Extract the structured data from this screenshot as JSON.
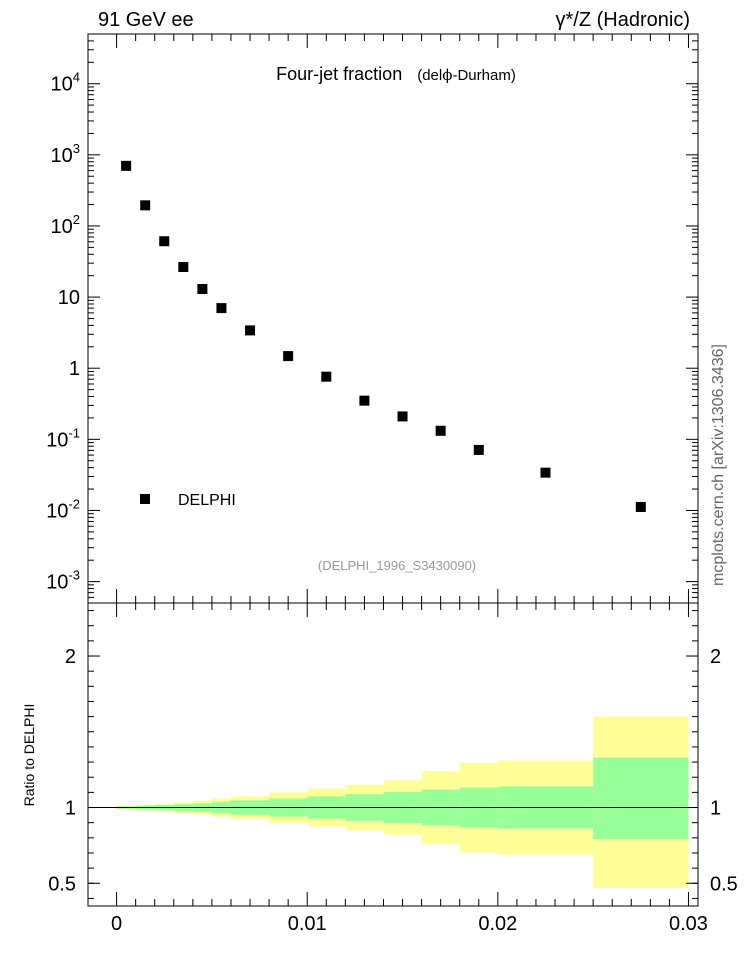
{
  "header": {
    "left": "91 GeV ee",
    "right": "γ*/Z (Hadronic)"
  },
  "side_label": "mcplots.cern.ch [arXiv:1306.3436]",
  "chart_data": [
    {
      "type": "scatter",
      "title": "Four-jet fraction",
      "subtitle_prefix": "del",
      "subtitle_symbol": "ϕ",
      "subtitle_suffix": "-Durham)",
      "subtitle_open": "(",
      "y_scale": "log",
      "xlim": [
        -0.0015,
        0.0305
      ],
      "ylim": [
        0.0005,
        50000
      ],
      "y_ticks": [
        {
          "value": 0.001,
          "label": "10",
          "exp": "-3"
        },
        {
          "value": 0.01,
          "label": "10",
          "exp": "-2"
        },
        {
          "value": 0.1,
          "label": "10",
          "exp": "-1"
        },
        {
          "value": 1,
          "label": "1",
          "exp": ""
        },
        {
          "value": 10,
          "label": "10",
          "exp": ""
        },
        {
          "value": 100,
          "label": "10",
          "exp": "2"
        },
        {
          "value": 1000,
          "label": "10",
          "exp": "3"
        },
        {
          "value": 10000,
          "label": "10",
          "exp": "4"
        }
      ],
      "legend": {
        "label": "DELPHI",
        "position": "bottom-left"
      },
      "watermark": "(DELPHI_1996_S3430090)",
      "series": [
        {
          "name": "DELPHI",
          "color": "#000000",
          "x": [
            0.0005,
            0.0015,
            0.0025,
            0.0035,
            0.0045,
            0.0055,
            0.007,
            0.009,
            0.011,
            0.013,
            0.015,
            0.017,
            0.019,
            0.0225,
            0.0275
          ],
          "y": [
            700,
            195,
            61,
            26.5,
            13,
            7,
            3.4,
            1.48,
            0.76,
            0.35,
            0.21,
            0.132,
            0.071,
            0.034,
            0.0112
          ]
        }
      ]
    },
    {
      "type": "area",
      "ylabel": "Ratio to DELPHI",
      "xlim": [
        -0.0015,
        0.0305
      ],
      "ylim": [
        0.35,
        2.35
      ],
      "x_ticks": [
        {
          "value": 0,
          "label": "0"
        },
        {
          "value": 0.01,
          "label": "0.01"
        },
        {
          "value": 0.02,
          "label": "0.02"
        },
        {
          "value": 0.03,
          "label": "0.03"
        }
      ],
      "y_ticks": [
        {
          "value": 0.5,
          "label": "0.5"
        },
        {
          "value": 1,
          "label": "1"
        },
        {
          "value": 2,
          "label": "2"
        }
      ],
      "reference_line": 1,
      "colors": {
        "inner_band": "#99ff99",
        "outer_band": "#ffff99"
      },
      "bins": [
        {
          "lo": 0.0,
          "hi": 0.001,
          "in_lo": 0.992,
          "in_hi": 1.008,
          "out_lo": 0.988,
          "out_hi": 1.012
        },
        {
          "lo": 0.001,
          "hi": 0.002,
          "in_lo": 0.988,
          "in_hi": 1.012,
          "out_lo": 0.982,
          "out_hi": 1.018
        },
        {
          "lo": 0.002,
          "hi": 0.003,
          "in_lo": 0.984,
          "in_hi": 1.016,
          "out_lo": 0.975,
          "out_hi": 1.025
        },
        {
          "lo": 0.003,
          "hi": 0.004,
          "in_lo": 0.978,
          "in_hi": 1.022,
          "out_lo": 0.965,
          "out_hi": 1.035
        },
        {
          "lo": 0.004,
          "hi": 0.005,
          "in_lo": 0.972,
          "in_hi": 1.028,
          "out_lo": 0.955,
          "out_hi": 1.045
        },
        {
          "lo": 0.005,
          "hi": 0.006,
          "in_lo": 0.962,
          "in_hi": 1.038,
          "out_lo": 0.94,
          "out_hi": 1.06
        },
        {
          "lo": 0.006,
          "hi": 0.008,
          "in_lo": 0.952,
          "in_hi": 1.048,
          "out_lo": 0.925,
          "out_hi": 1.075
        },
        {
          "lo": 0.008,
          "hi": 0.01,
          "in_lo": 0.94,
          "in_hi": 1.06,
          "out_lo": 0.9,
          "out_hi": 1.1
        },
        {
          "lo": 0.01,
          "hi": 0.012,
          "in_lo": 0.926,
          "in_hi": 1.074,
          "out_lo": 0.875,
          "out_hi": 1.125
        },
        {
          "lo": 0.012,
          "hi": 0.014,
          "in_lo": 0.912,
          "in_hi": 1.088,
          "out_lo": 0.85,
          "out_hi": 1.15
        },
        {
          "lo": 0.014,
          "hi": 0.016,
          "in_lo": 0.897,
          "in_hi": 1.103,
          "out_lo": 0.82,
          "out_hi": 1.18
        },
        {
          "lo": 0.016,
          "hi": 0.018,
          "in_lo": 0.882,
          "in_hi": 1.118,
          "out_lo": 0.76,
          "out_hi": 1.24
        },
        {
          "lo": 0.018,
          "hi": 0.02,
          "in_lo": 0.868,
          "in_hi": 1.132,
          "out_lo": 0.705,
          "out_hi": 1.295
        },
        {
          "lo": 0.02,
          "hi": 0.025,
          "in_lo": 0.86,
          "in_hi": 1.14,
          "out_lo": 0.69,
          "out_hi": 1.31
        },
        {
          "lo": 0.025,
          "hi": 0.03,
          "in_lo": 0.79,
          "in_hi": 1.33,
          "out_lo": 0.47,
          "out_hi": 1.6
        }
      ]
    }
  ]
}
